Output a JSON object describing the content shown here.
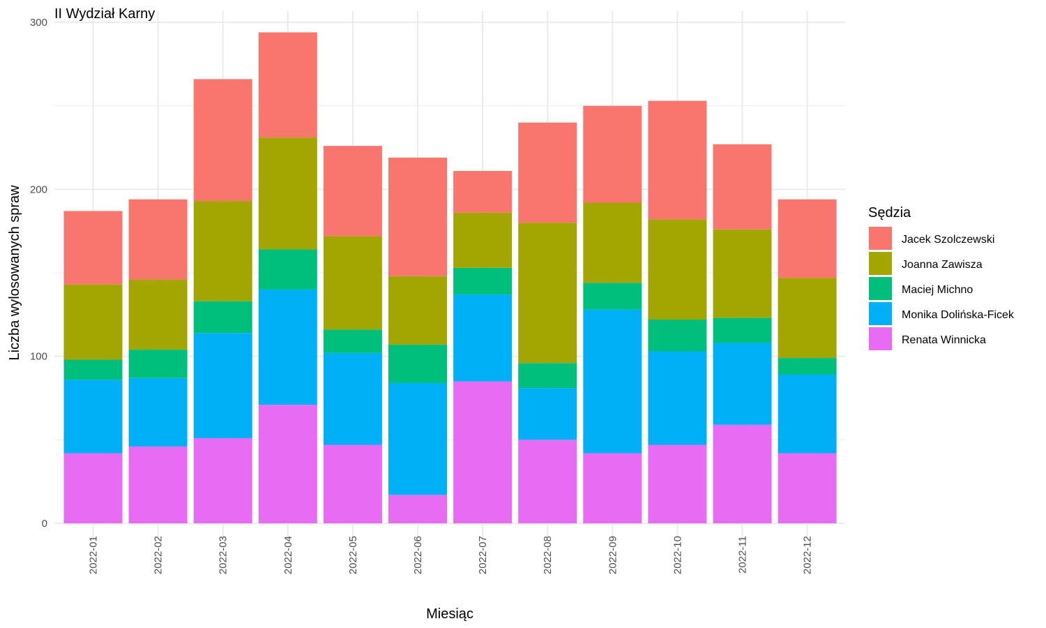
{
  "chart_data": {
    "type": "bar",
    "stacked": true,
    "title": "II Wydział Karny",
    "xlabel": "Miesiąc",
    "ylabel": "Liczba wylosowanych spraw",
    "ylim": [
      0,
      300
    ],
    "yticks": [
      0,
      100,
      200,
      300
    ],
    "grid": true,
    "legend_title": "Sędzia",
    "legend_position": "right",
    "categories": [
      "2022-01",
      "2022-02",
      "2022-03",
      "2022-04",
      "2022-05",
      "2022-06",
      "2022-07",
      "2022-08",
      "2022-09",
      "2022-10",
      "2022-11",
      "2022-12"
    ],
    "series": [
      {
        "name": "Jacek Szolczewski",
        "color": "#F8766D",
        "values": [
          44,
          48,
          73,
          63,
          54,
          71,
          25,
          60,
          58,
          71,
          51,
          47
        ]
      },
      {
        "name": "Joanna Zawisza",
        "color": "#A3A500",
        "values": [
          45,
          42,
          60,
          67,
          56,
          41,
          33,
          84,
          48,
          60,
          53,
          48
        ]
      },
      {
        "name": "Maciej Michno",
        "color": "#00BF7D",
        "values": [
          12,
          17,
          19,
          24,
          14,
          23,
          16,
          15,
          16,
          19,
          15,
          10
        ]
      },
      {
        "name": "Monika Dolińska-Ficek",
        "color": "#00B0F6",
        "values": [
          44,
          41,
          63,
          69,
          55,
          67,
          52,
          31,
          86,
          56,
          49,
          47
        ]
      },
      {
        "name": "Renata Winnicka",
        "color": "#E76BF3",
        "values": [
          42,
          46,
          51,
          71,
          47,
          17,
          85,
          50,
          42,
          47,
          59,
          42
        ]
      }
    ]
  }
}
